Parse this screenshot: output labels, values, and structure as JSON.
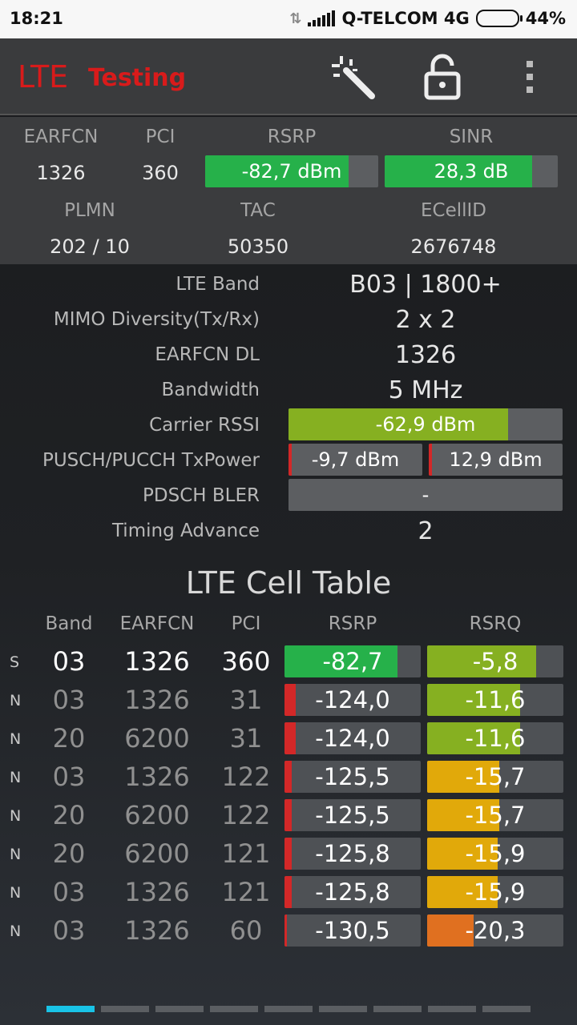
{
  "status": {
    "time": "18:21",
    "carrier": "Q-TELCOM 4G",
    "battery": "44%",
    "battery_level": 0.44
  },
  "app": {
    "title_main": "LTE",
    "title_sub": "Testing",
    "icons": [
      "magic-wand-icon",
      "unlock-icon",
      "more-vert-icon"
    ]
  },
  "summary": {
    "earfcn_label": "EARFCN",
    "pci_label": "PCI",
    "rsrp_label": "RSRP",
    "sinr_label": "SINR",
    "earfcn": "1326",
    "pci": "360",
    "rsrp": "-82,7 dBm",
    "rsrp_level": 0.83,
    "sinr": "28,3 dB",
    "sinr_level": 0.85,
    "plmn_label": "PLMN",
    "tac_label": "TAC",
    "ecellid_label": "ECellID",
    "plmn": "202 / 10",
    "tac": "50350",
    "ecellid": "2676748"
  },
  "details": {
    "lte_band_label": "LTE Band",
    "lte_band": "B03 | 1800+",
    "mimo_label": "MIMO Diversity(Tx/Rx)",
    "mimo": "2 x 2",
    "earfcn_dl_label": "EARFCN DL",
    "earfcn_dl": "1326",
    "bandwidth_label": "Bandwidth",
    "bandwidth": "5 MHz",
    "rssi_label": "Carrier RSSI",
    "rssi": "-62,9 dBm",
    "rssi_level": 0.8,
    "txpower_label": "PUSCH/PUCCH TxPower",
    "pusch": "-9,7 dBm",
    "pucch": "12,9 dBm",
    "bler_label": "PDSCH BLER",
    "bler": "-",
    "ta_label": "Timing Advance",
    "ta": "2"
  },
  "cell_table": {
    "title": "LTE Cell Table",
    "headers": {
      "band": "Band",
      "earfcn": "EARFCN",
      "pci": "PCI",
      "rsrp": "RSRP",
      "rsrq": "RSRQ"
    },
    "rows": [
      {
        "type": "S",
        "band": "03",
        "earfcn": "1326",
        "pci": "360",
        "rsrp": "-82,7",
        "rsrp_level": 0.83,
        "rsrq": "-5,8",
        "rsrq_level": 0.8,
        "rsrq_color": "#86b021"
      },
      {
        "type": "N",
        "band": "03",
        "earfcn": "1326",
        "pci": "31",
        "rsrp": "-124,0",
        "rsrp_level": 0.08,
        "rsrq": "-11,6",
        "rsrq_level": 0.68,
        "rsrq_color": "#86b021"
      },
      {
        "type": "N",
        "band": "20",
        "earfcn": "6200",
        "pci": "31",
        "rsrp": "-124,0",
        "rsrp_level": 0.08,
        "rsrq": "-11,6",
        "rsrq_level": 0.68,
        "rsrq_color": "#86b021"
      },
      {
        "type": "N",
        "band": "03",
        "earfcn": "1326",
        "pci": "122",
        "rsrp": "-125,5",
        "rsrp_level": 0.05,
        "rsrq": "-15,7",
        "rsrq_level": 0.53,
        "rsrq_color": "#e1a90a"
      },
      {
        "type": "N",
        "band": "20",
        "earfcn": "6200",
        "pci": "122",
        "rsrp": "-125,5",
        "rsrp_level": 0.05,
        "rsrq": "-15,7",
        "rsrq_level": 0.53,
        "rsrq_color": "#e1a90a"
      },
      {
        "type": "N",
        "band": "20",
        "earfcn": "6200",
        "pci": "121",
        "rsrp": "-125,8",
        "rsrp_level": 0.05,
        "rsrq": "-15,9",
        "rsrq_level": 0.52,
        "rsrq_color": "#e1a90a"
      },
      {
        "type": "N",
        "band": "03",
        "earfcn": "1326",
        "pci": "121",
        "rsrp": "-125,8",
        "rsrp_level": 0.05,
        "rsrq": "-15,9",
        "rsrq_level": 0.52,
        "rsrq_color": "#e1a90a"
      },
      {
        "type": "N",
        "band": "03",
        "earfcn": "1326",
        "pci": "60",
        "rsrp": "-130,5",
        "rsrp_level": 0.02,
        "rsrq": "-20,3",
        "rsrq_level": 0.34,
        "rsrq_color": "#e07020"
      }
    ]
  },
  "pager": {
    "pages": 9,
    "active": 0
  },
  "colors": {
    "green": "#26b14a",
    "lime": "#86b021",
    "red": "#d32828",
    "accent": "#19c3e6",
    "brand": "#d81b1b"
  }
}
